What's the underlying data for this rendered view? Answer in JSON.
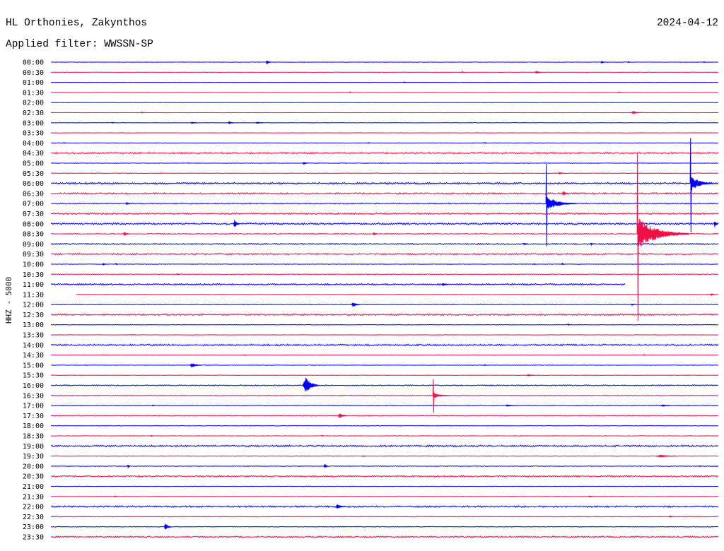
{
  "colors": {
    "background": "#ffffff",
    "text": "#000000"
  },
  "chart_data": {
    "type": "line",
    "title": "HL Orthonies, Zakynthos",
    "date": "2024-04-12",
    "subtitle": "Applied filter: WWSSN-SP",
    "ylabel": "HHZ - 5000",
    "colors": [
      "#0000ff",
      "#ee1046"
    ],
    "rows": [
      "00:00",
      "00:30",
      "01:00",
      "01:30",
      "02:00",
      "02:30",
      "03:00",
      "03:30",
      "04:00",
      "04:30",
      "05:00",
      "05:30",
      "06:00",
      "06:30",
      "07:00",
      "07:30",
      "08:00",
      "08:30",
      "09:00",
      "09:30",
      "10:00",
      "10:30",
      "11:00",
      "11:30",
      "12:00",
      "12:30",
      "13:00",
      "13:30",
      "14:00",
      "14:30",
      "15:00",
      "15:30",
      "16:00",
      "16:30",
      "17:00",
      "17:30",
      "18:00",
      "18:30",
      "19:00",
      "19:30",
      "20:00",
      "20:30",
      "21:00",
      "21:30",
      "22:00",
      "22:30",
      "23:00",
      "23:30"
    ],
    "noise": [
      120,
      120,
      100,
      100,
      100,
      100,
      120,
      120,
      150,
      450,
      150,
      200,
      500,
      450,
      300,
      450,
      500,
      300,
      350,
      450,
      150,
      200,
      450,
      150,
      200,
      450,
      150,
      150,
      450,
      150,
      150,
      150,
      300,
      200,
      200,
      250,
      150,
      150,
      450,
      200,
      200,
      450,
      150,
      150,
      450,
      200,
      200,
      450
    ],
    "gaps": [
      {
        "start": "11:25:48",
        "end": "11:31:09"
      }
    ],
    "events": [
      {
        "t": "00:09:40",
        "amp": 1300,
        "dur": 12
      },
      {
        "t": "00:24:43",
        "amp": 800,
        "dur": 10
      },
      {
        "t": "00:25:56",
        "amp": 500,
        "dur": 6
      },
      {
        "t": "00:29:20",
        "amp": 400,
        "dur": 4
      },
      {
        "t": "00:48:28",
        "amp": 500,
        "dur": 4
      },
      {
        "t": "00:51:46",
        "amp": 900,
        "dur": 14
      },
      {
        "t": "01:15:51",
        "amp": 400,
        "dur": 4
      },
      {
        "t": "01:43:26",
        "amp": 400,
        "dur": 4
      },
      {
        "t": "01:55:31",
        "amp": 500,
        "dur": 4
      },
      {
        "t": "02:34:04",
        "amp": 400,
        "dur": 4
      },
      {
        "t": "02:56:05",
        "amp": 800,
        "dur": 24
      },
      {
        "t": "03:02:44",
        "amp": 400,
        "dur": 4
      },
      {
        "t": "03:06:17",
        "amp": 500,
        "dur": 16
      },
      {
        "t": "03:07:57",
        "amp": 700,
        "dur": 16
      },
      {
        "t": "03:09:13",
        "amp": 500,
        "dur": 18
      },
      {
        "t": "04:00:34",
        "amp": 400,
        "dur": 4
      },
      {
        "t": "04:14:14",
        "amp": 400,
        "dur": 4
      },
      {
        "t": "04:19:29",
        "amp": 400,
        "dur": 4
      },
      {
        "t": "05:11:19",
        "amp": 700,
        "dur": 14
      },
      {
        "t": "05:52:49",
        "amp": 700,
        "dur": 12
      },
      {
        "t": "06:28:44",
        "amp": 24000,
        "dur": 60
      },
      {
        "t": "06:53:00",
        "amp": 1600,
        "dur": 12
      },
      {
        "t": "06:57:37",
        "amp": 500,
        "dur": 8
      },
      {
        "t": "07:03:22",
        "amp": 900,
        "dur": 10
      },
      {
        "t": "07:22:15",
        "amp": 21000,
        "dur": 80
      },
      {
        "t": "08:08:12",
        "amp": 2200,
        "dur": 16
      },
      {
        "t": "08:29:48",
        "amp": 2200,
        "dur": 10
      },
      {
        "t": "08:33:16",
        "amp": 1300,
        "dur": 12
      },
      {
        "t": "08:44:29",
        "amp": 1100,
        "dur": 10
      },
      {
        "t": "08:56:21",
        "amp": 43000,
        "dur": 140
      },
      {
        "t": "09:21:14",
        "amp": 600,
        "dur": 10
      },
      {
        "t": "09:24:15",
        "amp": 700,
        "dur": 10
      },
      {
        "t": "10:02:19",
        "amp": 700,
        "dur": 10
      },
      {
        "t": "10:02:54",
        "amp": 700,
        "dur": 6
      },
      {
        "t": "10:21:42",
        "amp": 500,
        "dur": 6
      },
      {
        "t": "10:22:58",
        "amp": 600,
        "dur": 6
      },
      {
        "t": "10:35:39",
        "amp": 500,
        "dur": 8
      },
      {
        "t": "11:17:34",
        "amp": 800,
        "dur": 16
      },
      {
        "t": "11:59:39",
        "amp": 600,
        "dur": 12
      },
      {
        "t": "12:13:30",
        "amp": 1100,
        "dur": 24
      },
      {
        "t": "12:26:05",
        "amp": 600,
        "dur": 10
      },
      {
        "t": "13:23:14",
        "amp": 500,
        "dur": 6
      },
      {
        "t": "14:38:41",
        "amp": 400,
        "dur": 4
      },
      {
        "t": "14:56:38",
        "amp": 400,
        "dur": 4
      },
      {
        "t": "15:06:14",
        "amp": 1100,
        "dur": 30
      },
      {
        "t": "15:19:29",
        "amp": 400,
        "dur": 4
      },
      {
        "t": "15:51:23",
        "amp": 500,
        "dur": 20
      },
      {
        "t": "16:11:19",
        "amp": 4000,
        "dur": 40
      },
      {
        "t": "16:47:10",
        "amp": 8500,
        "dur": 45
      },
      {
        "t": "17:04:33",
        "amp": 500,
        "dur": 6
      },
      {
        "t": "17:20:26",
        "amp": 500,
        "dur": 24
      },
      {
        "t": "17:27:25",
        "amp": 500,
        "dur": 24
      },
      {
        "t": "17:42:54",
        "amp": 1300,
        "dur": 22
      },
      {
        "t": "18:34:29",
        "amp": 400,
        "dur": 4
      },
      {
        "t": "18:42:10",
        "amp": 500,
        "dur": 6
      },
      {
        "t": "19:44:01",
        "amp": 400,
        "dur": 4
      },
      {
        "t": "19:57:12",
        "amp": 600,
        "dur": 55
      },
      {
        "t": "20:03:26",
        "amp": 1200,
        "dur": 8
      },
      {
        "t": "20:12:16",
        "amp": 1400,
        "dur": 10
      },
      {
        "t": "20:29:07",
        "amp": 400,
        "dur": 4
      },
      {
        "t": "21:32:52",
        "amp": 500,
        "dur": 6
      },
      {
        "t": "21:54:11",
        "amp": 500,
        "dur": 10
      },
      {
        "t": "22:12:48",
        "amp": 1200,
        "dur": 24
      },
      {
        "t": "22:57:48",
        "amp": 700,
        "dur": 8
      },
      {
        "t": "23:05:05",
        "amp": 1800,
        "dur": 18
      }
    ]
  }
}
